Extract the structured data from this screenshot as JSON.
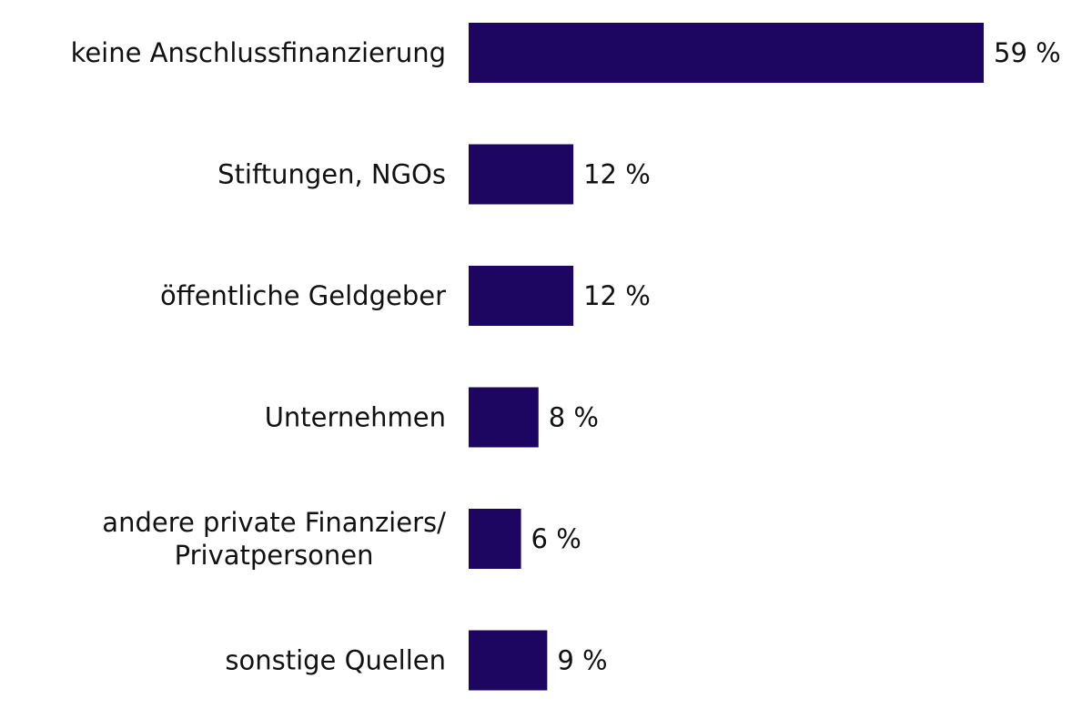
{
  "chart_data": {
    "type": "bar",
    "orientation": "horizontal",
    "categories": [
      [
        "keine Anschlussfinanzierung"
      ],
      [
        "Stiftungen, NGOs"
      ],
      [
        "öffentliche Geldgeber"
      ],
      [
        "Unternehmen"
      ],
      [
        "andere private Finanziers/",
        "Privatpersonen"
      ],
      [
        "sonstige Quellen"
      ]
    ],
    "values": [
      59,
      12,
      12,
      8,
      6,
      9
    ],
    "value_labels": [
      "59 %",
      "12 %",
      "12 %",
      "8 %",
      "6 %",
      "9 %"
    ],
    "unit": "%",
    "xlim": [
      0,
      59
    ],
    "grid": false,
    "bar_color": "#1c0661"
  }
}
